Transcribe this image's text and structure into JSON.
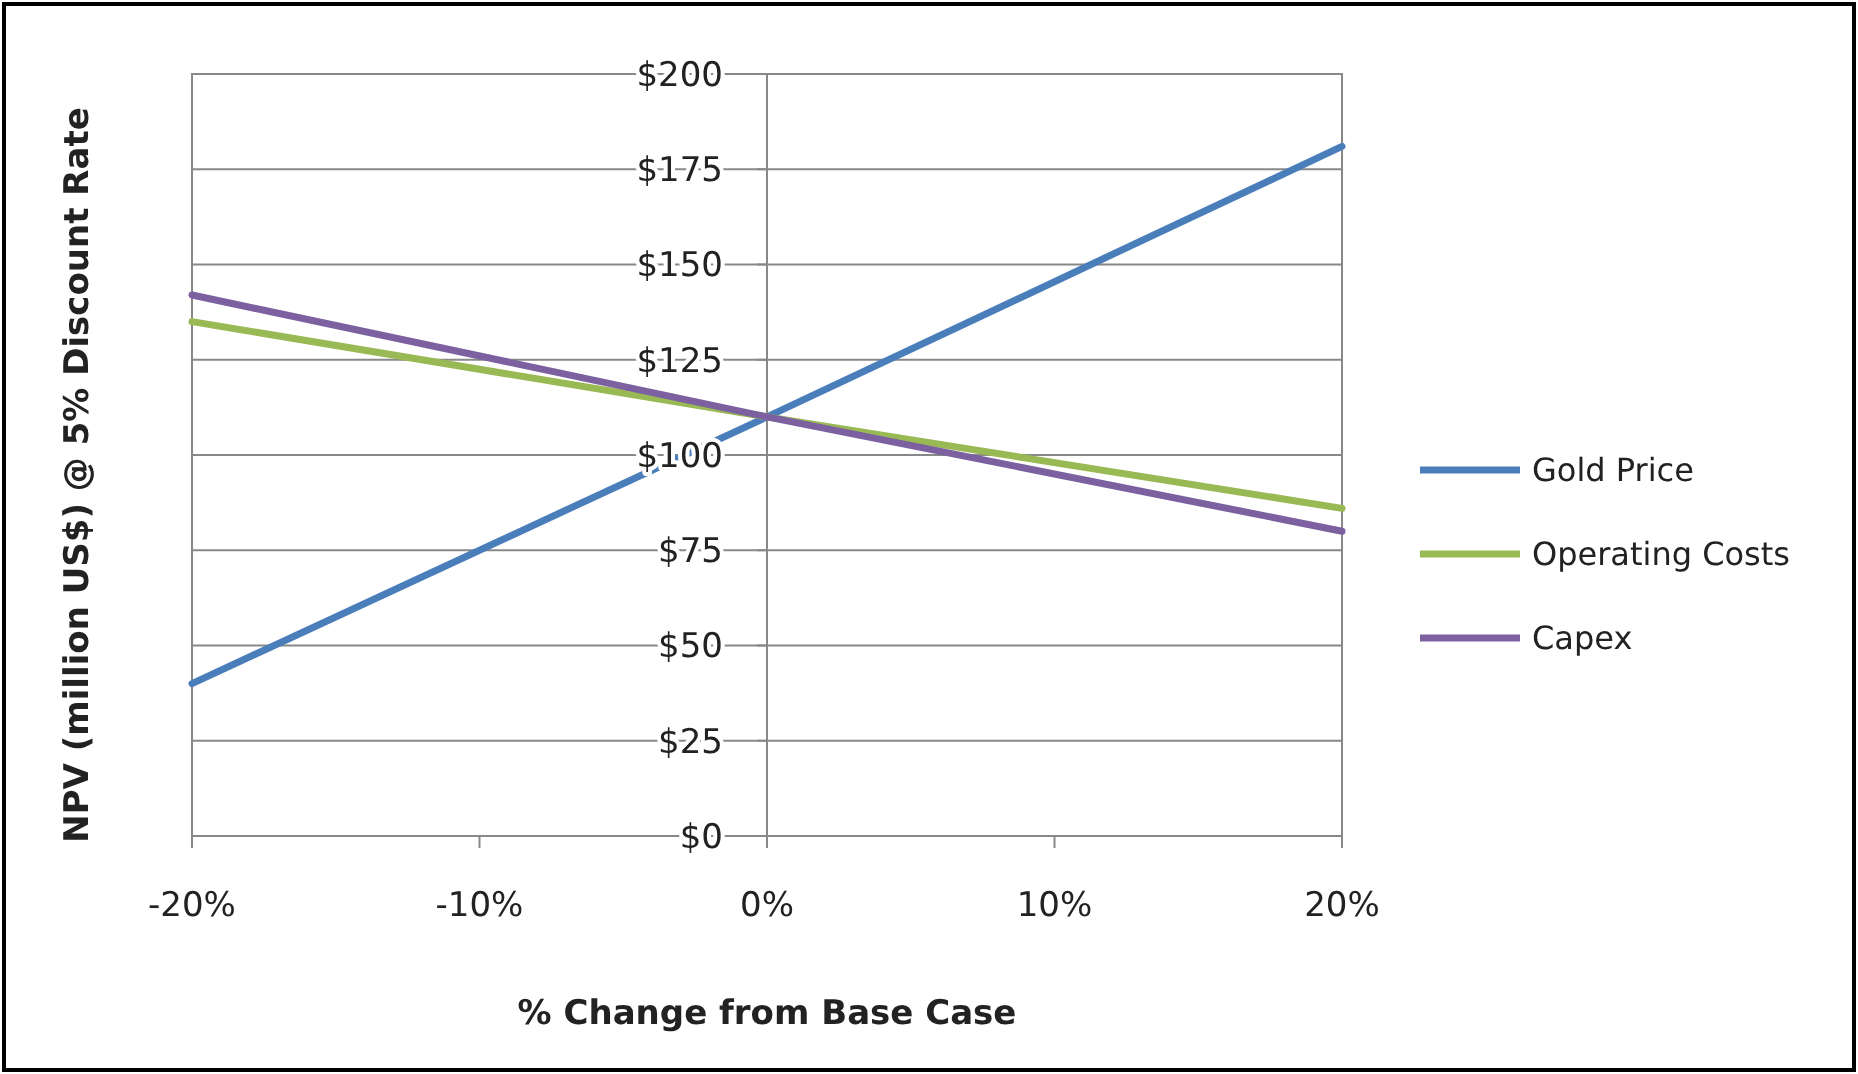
{
  "chart_data": {
    "type": "line",
    "xlabel": "% Change from Base Case",
    "ylabel": "NPV (million US$) @ 5% Discount Rate",
    "x": [
      -20,
      0,
      20
    ],
    "series": [
      {
        "name": "Gold Price",
        "color": "#4a7ebb",
        "values": [
          40,
          110,
          181
        ]
      },
      {
        "name": "Operating Costs",
        "color": "#98b954",
        "values": [
          135,
          110,
          86
        ]
      },
      {
        "name": "Capex",
        "color": "#7d60a0",
        "values": [
          142,
          110,
          80
        ]
      }
    ],
    "xlim": [
      -20,
      20
    ],
    "xticks": [
      {
        "value": -20,
        "label": "-20%"
      },
      {
        "value": -10,
        "label": "-10%"
      },
      {
        "value": 0,
        "label": "0%"
      },
      {
        "value": 10,
        "label": "10%"
      },
      {
        "value": 20,
        "label": "20%"
      }
    ],
    "ylim": [
      0,
      200
    ],
    "yticks": [
      {
        "value": 0,
        "label": "$0"
      },
      {
        "value": 25,
        "label": "$25"
      },
      {
        "value": 50,
        "label": "$50"
      },
      {
        "value": 75,
        "label": "$75"
      },
      {
        "value": 100,
        "label": "$100"
      },
      {
        "value": 125,
        "label": "$125"
      },
      {
        "value": 150,
        "label": "$150"
      },
      {
        "value": 175,
        "label": "$175"
      },
      {
        "value": 200,
        "label": "$200"
      }
    ],
    "grid": "y",
    "legend": "right",
    "marker": "none",
    "line_style": "solid"
  }
}
